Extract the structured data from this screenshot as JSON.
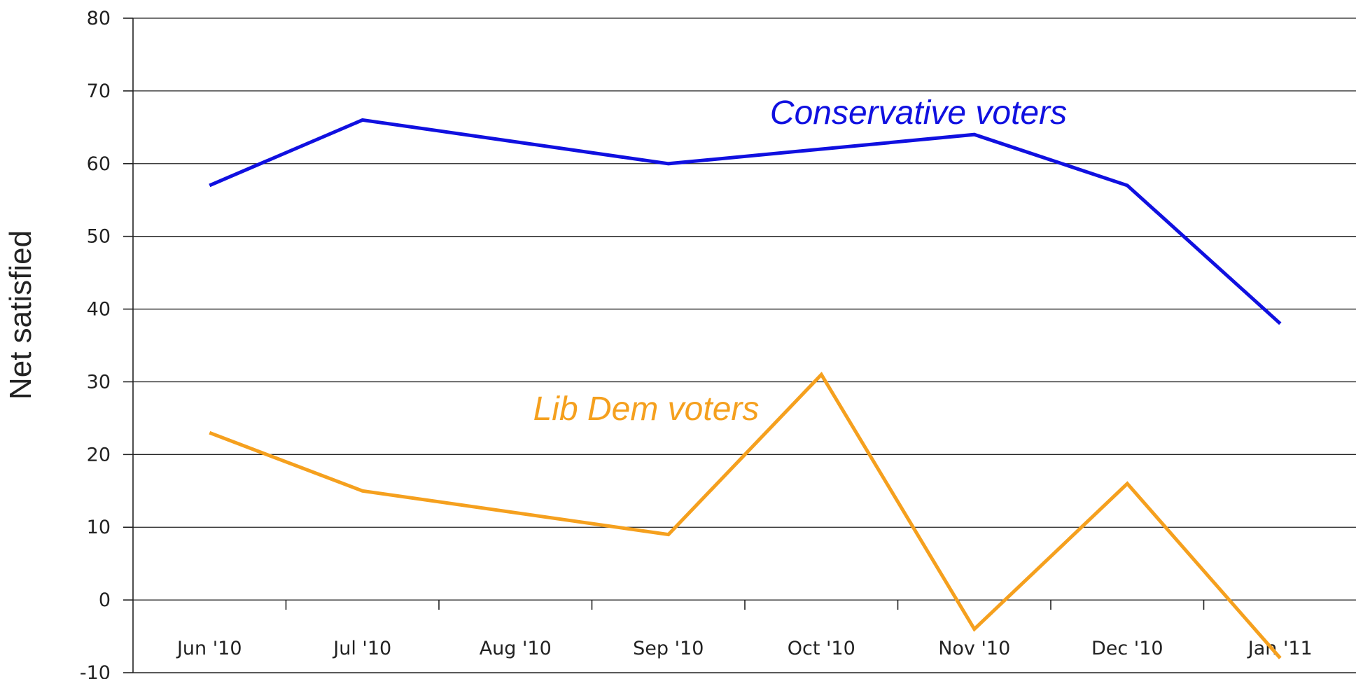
{
  "chart_data": {
    "type": "line",
    "title": "",
    "xlabel": "",
    "ylabel": "Net satisfied",
    "ylim": [
      -10,
      80
    ],
    "yticks": [
      -10,
      0,
      10,
      20,
      30,
      40,
      50,
      60,
      70,
      80
    ],
    "grid": true,
    "categories": [
      "Jun '10",
      "Jul '10",
      "Aug '10",
      "Sep '10",
      "Oct '10",
      "Nov '10",
      "Dec '10",
      "Jan '11"
    ],
    "series": [
      {
        "name": "Conservative voters",
        "color": "#1010e0",
        "points": [
          {
            "x": 0,
            "y": 57
          },
          {
            "x": 1,
            "y": 66
          },
          {
            "x": 3,
            "y": 60
          },
          {
            "x": 5,
            "y": 64
          },
          {
            "x": 6,
            "y": 57
          },
          {
            "x": 7,
            "y": 38
          }
        ]
      },
      {
        "name": "Lib Dem voters",
        "color": "#f5a01e",
        "points": [
          {
            "x": 0,
            "y": 23
          },
          {
            "x": 1,
            "y": 15
          },
          {
            "x": 3,
            "y": 9
          },
          {
            "x": 4,
            "y": 31
          },
          {
            "x": 5,
            "y": -4
          },
          {
            "x": 6,
            "y": 16
          },
          {
            "x": 7,
            "y": -8
          }
        ]
      }
    ]
  }
}
